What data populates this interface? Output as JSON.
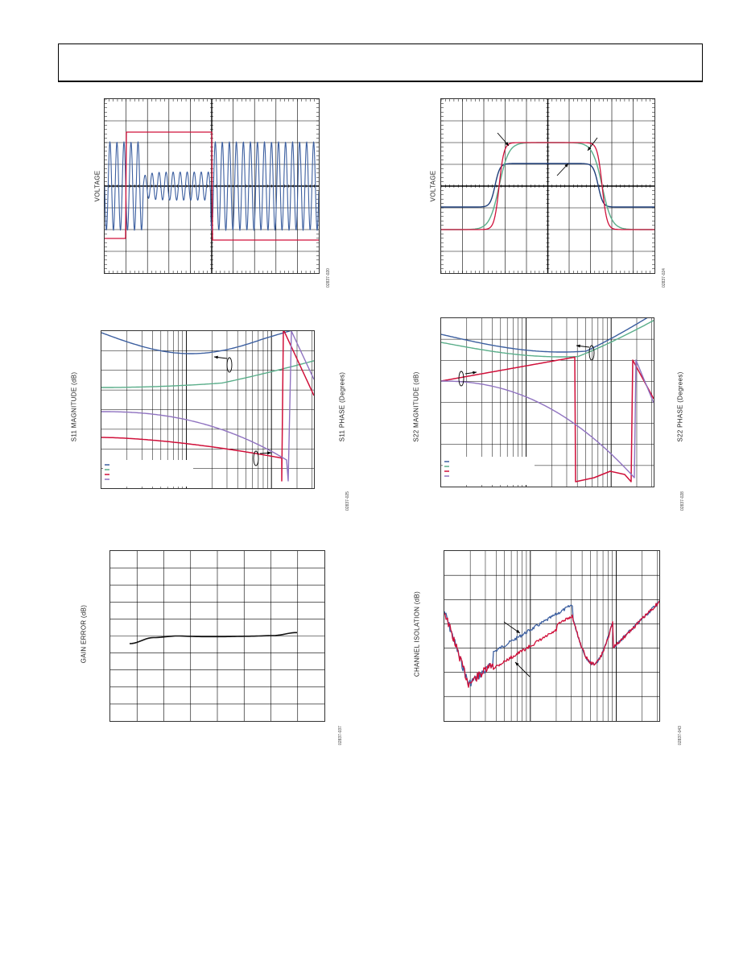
{
  "page": {
    "header_box": ""
  },
  "figures": [
    {
      "id": "fig-1",
      "ylabel": "VOLTAGE",
      "figure_id": "02837-020"
    },
    {
      "id": "fig-2",
      "ylabel": "VOLTAGE",
      "figure_id": "02837-024"
    },
    {
      "id": "fig-3",
      "ylabel_left": "S11 MAGNITUDE (dB)",
      "ylabel_right": "S11 PHASE (Degrees)",
      "figure_id": "02837-025"
    },
    {
      "id": "fig-4",
      "ylabel_left": "S22 MAGNITUDE (dB)",
      "ylabel_right": "S22 PHASE (Degrees)",
      "figure_id": "02837-028"
    },
    {
      "id": "fig-5",
      "ylabel": "GAIN ERROR (dB)",
      "figure_id": "02837-037"
    },
    {
      "id": "fig-6",
      "ylabel": "CHANNEL ISOLATION (dB)",
      "figure_id": "02837-043"
    }
  ],
  "colors": {
    "blue": "#3c5fa0",
    "red": "#d0103a",
    "green": "#5aae8a",
    "purple": "#8f72c0",
    "navy": "#1f3f7a",
    "black": "#111111",
    "grid": "#000000"
  },
  "chart_data": [
    {
      "type": "line",
      "title": "",
      "ylabel": "VOLTAGE",
      "series": [
        {
          "role": "control step (red)",
          "levels": [
            -1.2,
            1.2,
            -1.2
          ],
          "step_x": [
            0.1,
            0.5
          ]
        },
        {
          "role": "output (blue)",
          "pattern": "sine, amplitude 1.0 outside window, 0.3 inside window"
        }
      ]
    },
    {
      "type": "line",
      "title": "",
      "ylabel": "VOLTAGE",
      "series": [
        {
          "role": "red pulse",
          "low": -1.0,
          "high": 1.0
        },
        {
          "role": "green pulse",
          "low": -1.0,
          "high": 1.0
        },
        {
          "role": "navy pulse",
          "low": 0.0,
          "high": 0.55
        }
      ]
    },
    {
      "type": "line",
      "title": "",
      "ylabel": "S11 MAGNITUDE (dB)",
      "y2label": "S11 PHASE (Degrees)",
      "xscale": "log",
      "legend": "bottom-left",
      "series": [
        {
          "role": "magnitude 1 (blue)"
        },
        {
          "role": "magnitude 2 (green)"
        },
        {
          "role": "phase 1 (red)"
        },
        {
          "role": "phase 2 (purple)"
        }
      ]
    },
    {
      "type": "line",
      "title": "",
      "ylabel": "S22 MAGNITUDE (dB)",
      "y2label": "S22 PHASE (Degrees)",
      "xscale": "log",
      "legend": "bottom-left",
      "series": [
        {
          "role": "magnitude 1 (blue)"
        },
        {
          "role": "magnitude 2 (green)"
        },
        {
          "role": "phase 1 (red)"
        },
        {
          "role": "phase 2 (purple)"
        }
      ]
    },
    {
      "type": "line",
      "title": "",
      "ylabel": "GAIN ERROR (dB)",
      "series": [
        {
          "role": "gain error (black)",
          "x": [
            0,
            1,
            2,
            3,
            4,
            5,
            6,
            7
          ],
          "values": [
            -0.4,
            -0.1,
            -0.02,
            -0.05,
            -0.05,
            -0.03,
            0.0,
            0.15
          ]
        }
      ]
    },
    {
      "type": "line",
      "title": "",
      "ylabel": "CHANNEL ISOLATION (dB)",
      "xscale": "log",
      "series": [
        {
          "role": "isolation 1 (blue)"
        },
        {
          "role": "isolation 2 (red)"
        }
      ]
    }
  ]
}
